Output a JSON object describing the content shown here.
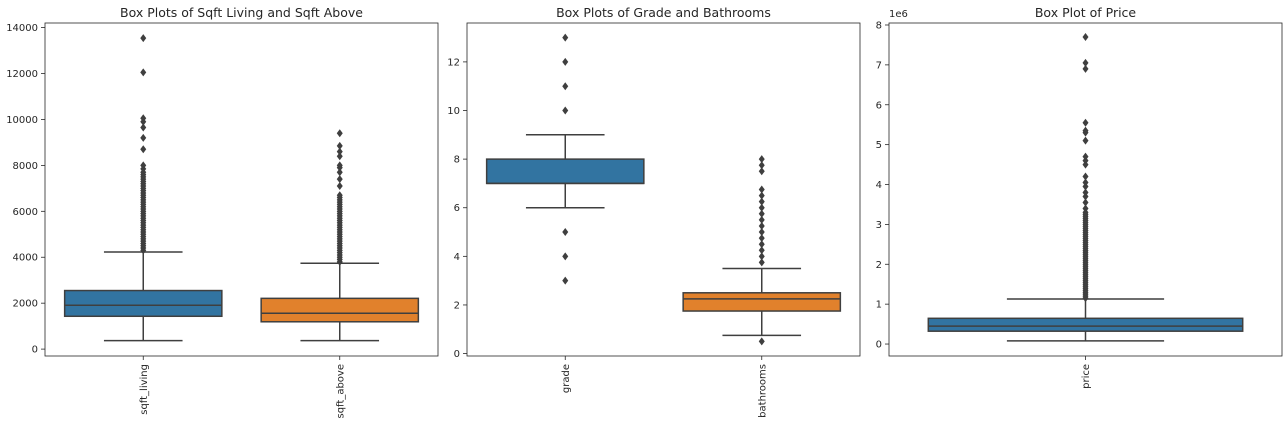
{
  "chart_data": [
    {
      "type": "box",
      "title": "Box Plots of Sqft Living and Sqft Above",
      "xlabel": "",
      "ylabel": "",
      "ylim": [
        -300,
        14200
      ],
      "yticks": [
        0,
        2000,
        4000,
        6000,
        8000,
        10000,
        12000,
        14000
      ],
      "y_tick_labels": [
        "0",
        "2000",
        "4000",
        "6000",
        "8000",
        "10000",
        "12000",
        "14000"
      ],
      "offset_label": "",
      "grid": false,
      "categories": [
        "sqft_living",
        "sqft_above"
      ],
      "colors": [
        "#3274a1",
        "#e1812c"
      ],
      "boxes": [
        {
          "name": "sqft_living",
          "whisker_low": 370,
          "q1": 1430,
          "median": 1910,
          "q3": 2550,
          "whisker_high": 4230,
          "outliers": [
            4300,
            4400,
            4500,
            4600,
            4700,
            4800,
            4900,
            5000,
            5100,
            5200,
            5300,
            5400,
            5500,
            5600,
            5700,
            5800,
            5900,
            6000,
            6100,
            6200,
            6300,
            6400,
            6500,
            6600,
            6700,
            6800,
            6900,
            7000,
            7100,
            7200,
            7300,
            7400,
            7500,
            7600,
            7700,
            7850,
            8000,
            8700,
            9200,
            9650,
            9900,
            10050,
            12050,
            13540
          ]
        },
        {
          "name": "sqft_above",
          "whisker_low": 370,
          "q1": 1190,
          "median": 1560,
          "q3": 2210,
          "whisker_high": 3740,
          "outliers": [
            3800,
            3900,
            4000,
            4100,
            4200,
            4300,
            4400,
            4500,
            4600,
            4700,
            4800,
            4900,
            5000,
            5100,
            5200,
            5300,
            5400,
            5500,
            5600,
            5700,
            5800,
            5900,
            6000,
            6100,
            6200,
            6300,
            6400,
            6500,
            6600,
            6700,
            7100,
            7400,
            7700,
            7900,
            8000,
            8400,
            8600,
            8850,
            9400
          ]
        }
      ]
    },
    {
      "type": "box",
      "title": "Box Plots of Grade and Bathrooms",
      "xlabel": "",
      "ylabel": "",
      "ylim": [
        -0.1,
        13.6
      ],
      "yticks": [
        0,
        2,
        4,
        6,
        8,
        10,
        12
      ],
      "y_tick_labels": [
        "0",
        "2",
        "4",
        "6",
        "8",
        "10",
        "12"
      ],
      "offset_label": "",
      "grid": false,
      "categories": [
        "grade",
        "bathrooms"
      ],
      "colors": [
        "#3274a1",
        "#e1812c"
      ],
      "boxes": [
        {
          "name": "grade",
          "whisker_low": 6,
          "q1": 7,
          "median": 7,
          "q3": 8,
          "whisker_high": 9,
          "outliers": [
            3,
            4,
            5,
            10,
            11,
            12,
            13
          ]
        },
        {
          "name": "bathrooms",
          "whisker_low": 0.75,
          "q1": 1.75,
          "median": 2.25,
          "q3": 2.5,
          "whisker_high": 3.5,
          "outliers": [
            0.5,
            3.75,
            4,
            4.25,
            4.5,
            4.75,
            5,
            5.25,
            5.5,
            5.75,
            6,
            6.25,
            6.5,
            6.75,
            7.5,
            7.75,
            8
          ]
        }
      ]
    },
    {
      "type": "box",
      "title": "Box Plot of Price",
      "xlabel": "",
      "ylabel": "",
      "ylim": [
        -0.3,
        8.05
      ],
      "yticks": [
        0,
        1,
        2,
        3,
        4,
        5,
        6,
        7,
        8
      ],
      "y_tick_labels": [
        "0",
        "1",
        "2",
        "3",
        "4",
        "5",
        "6",
        "7",
        "8"
      ],
      "offset_label": "1e6",
      "grid": false,
      "categories": [
        "price"
      ],
      "colors": [
        "#3274a1"
      ],
      "boxes": [
        {
          "name": "price",
          "whisker_low": 0.078,
          "q1": 0.322,
          "median": 0.45,
          "q3": 0.645,
          "whisker_high": 1.13,
          "outliers": [
            1.15,
            1.2,
            1.25,
            1.3,
            1.35,
            1.4,
            1.45,
            1.5,
            1.55,
            1.6,
            1.65,
            1.7,
            1.75,
            1.8,
            1.85,
            1.9,
            1.95,
            2.0,
            2.05,
            2.1,
            2.15,
            2.2,
            2.25,
            2.3,
            2.35,
            2.4,
            2.45,
            2.5,
            2.55,
            2.6,
            2.65,
            2.7,
            2.75,
            2.8,
            2.85,
            2.9,
            2.95,
            3.0,
            3.05,
            3.1,
            3.15,
            3.2,
            3.25,
            3.3,
            3.4,
            3.55,
            3.7,
            3.8,
            3.95,
            4.05,
            4.2,
            4.5,
            4.6,
            4.7,
            5.1,
            5.3,
            5.35,
            5.55,
            6.9,
            7.05,
            7.7
          ]
        }
      ]
    }
  ]
}
